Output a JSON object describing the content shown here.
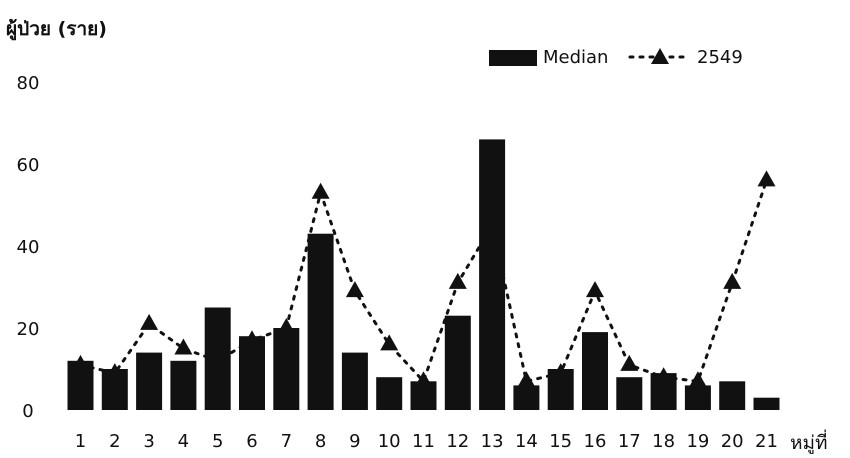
{
  "chart_data": {
    "type": "bar",
    "ylabel": "ผู้ป่วย (ราย)",
    "xlabel": "หมู่ที่",
    "categories": [
      "1",
      "2",
      "3",
      "4",
      "5",
      "6",
      "7",
      "8",
      "9",
      "10",
      "11",
      "12",
      "13",
      "14",
      "15",
      "16",
      "17",
      "18",
      "19",
      "20",
      "21"
    ],
    "series": [
      {
        "name": "Median",
        "type": "bar",
        "color": "#111111",
        "values": [
          12,
          10,
          14,
          12,
          25,
          18,
          20,
          43,
          14,
          8,
          7,
          23,
          66,
          6,
          10,
          19,
          8,
          9,
          6,
          7,
          3
        ]
      },
      {
        "name": "2549",
        "type": "line",
        "style": "dotted",
        "marker": "triangle",
        "color": "#111111",
        "values": [
          11,
          9,
          21,
          15,
          12,
          17,
          20,
          53,
          29,
          16,
          7,
          31,
          45,
          7,
          9,
          29,
          11,
          8,
          7,
          31,
          56
        ]
      }
    ],
    "ylim": [
      0,
      80
    ],
    "yticks": [
      "0",
      "20",
      "40",
      "60",
      "80"
    ],
    "legend_position": "top-right",
    "grid": false
  }
}
